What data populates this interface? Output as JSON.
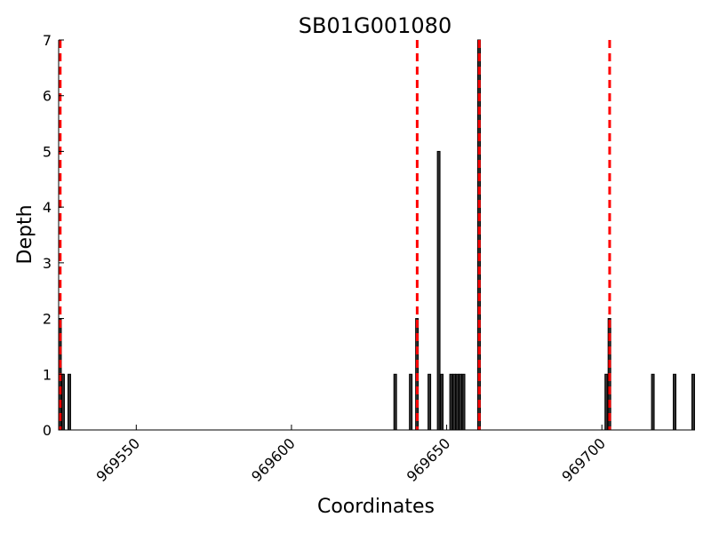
{
  "chart_data": {
    "type": "bar",
    "title": "SB01G001080",
    "xlabel": "Coordinates",
    "ylabel": "Depth",
    "xlim": [
      969525,
      969730
    ],
    "ylim": [
      0,
      7
    ],
    "xticks": [
      969550,
      969600,
      969650,
      969700
    ],
    "xtick_labels": [
      "969550",
      "969600",
      "969650",
      "969700"
    ],
    "yticks": [
      0,
      1,
      2,
      3,
      4,
      5,
      6,
      7
    ],
    "ytick_labels": [
      "0",
      "1",
      "2",
      "3",
      "4",
      "5",
      "6",
      "7"
    ],
    "x_tick_rotation_deg": 45,
    "grid": false,
    "bar_color": "#303030",
    "bar_edge_color": "#000000",
    "bars": [
      {
        "x": 969525,
        "depth": 2
      },
      {
        "x": 969526,
        "depth": 1
      },
      {
        "x": 969528,
        "depth": 1
      },
      {
        "x": 969633,
        "depth": 1
      },
      {
        "x": 969638,
        "depth": 1
      },
      {
        "x": 969640,
        "depth": 2
      },
      {
        "x": 969644,
        "depth": 1
      },
      {
        "x": 969647,
        "depth": 5
      },
      {
        "x": 969648,
        "depth": 1
      },
      {
        "x": 969651,
        "depth": 1
      },
      {
        "x": 969652,
        "depth": 1
      },
      {
        "x": 969653,
        "depth": 1
      },
      {
        "x": 969654,
        "depth": 1
      },
      {
        "x": 969655,
        "depth": 1
      },
      {
        "x": 969660,
        "depth": 7
      },
      {
        "x": 969701,
        "depth": 1
      },
      {
        "x": 969702,
        "depth": 2
      },
      {
        "x": 969716,
        "depth": 1
      },
      {
        "x": 969723,
        "depth": 1
      },
      {
        "x": 969729,
        "depth": 1
      }
    ],
    "reference_lines": {
      "color": "#ff0000",
      "style": "dashed",
      "x": [
        969525.5,
        969640.5,
        969660.5,
        969702.5
      ]
    }
  }
}
